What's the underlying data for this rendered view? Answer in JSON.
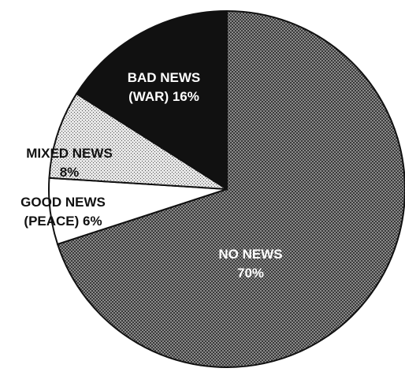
{
  "chart_data": {
    "type": "pie",
    "title": "",
    "start_angle_deg": -90,
    "direction": "clockwise",
    "slices": [
      {
        "label": [
          "NO NEWS",
          "70%"
        ],
        "value": 70,
        "fill": "pattern-dark",
        "label_color": "#ffffff"
      },
      {
        "label": [
          "GOOD NEWS",
          "(PEACE) 6%"
        ],
        "value": 6,
        "fill": "#ffffff",
        "label_color": "#111111"
      },
      {
        "label": [
          "MIXED NEWS",
          "8%"
        ],
        "value": 8,
        "fill": "pattern-light",
        "label_color": "#111111"
      },
      {
        "label": [
          "BAD NEWS",
          "(WAR) 16%"
        ],
        "value": 16,
        "fill": "#111111",
        "label_color": "#ffffff"
      }
    ]
  }
}
